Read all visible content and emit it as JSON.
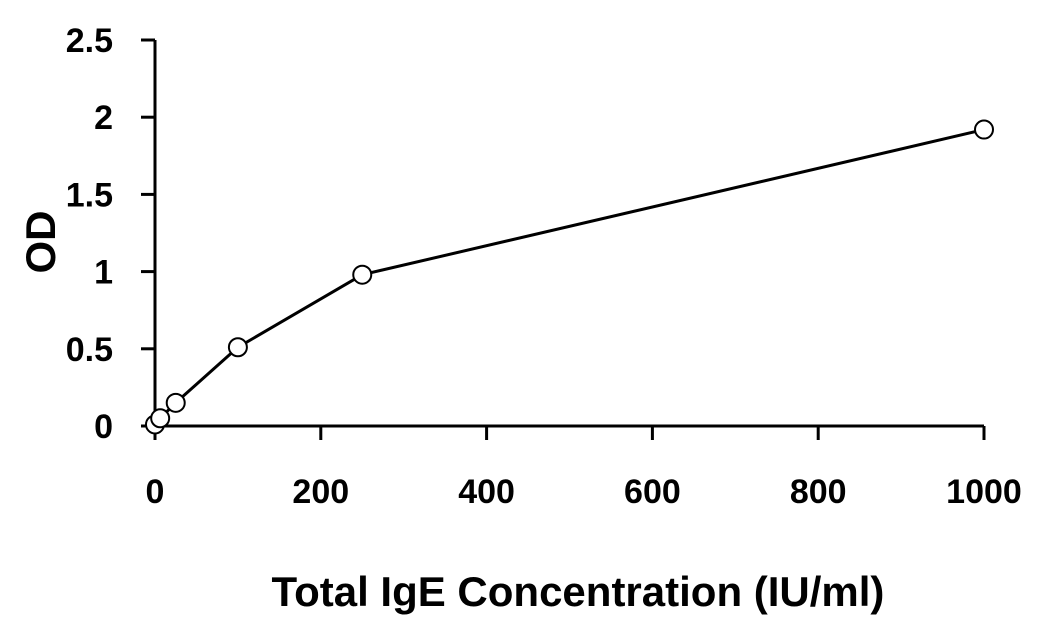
{
  "chart_data": {
    "type": "line",
    "xlabel": "Total IgE Concentration (IU/ml)",
    "ylabel": "OD",
    "xlim": [
      0,
      1000
    ],
    "ylim": [
      0,
      2.5
    ],
    "x_ticks": [
      0,
      200,
      400,
      600,
      800,
      1000
    ],
    "y_ticks": [
      0,
      0.5,
      1,
      1.5,
      2,
      2.5
    ],
    "x_tick_labels": [
      "0",
      "200",
      "400",
      "600",
      "800",
      "1000"
    ],
    "y_tick_labels": [
      "0",
      "0.5",
      "1",
      "1.5",
      "2",
      "2.5"
    ],
    "grid": false,
    "legend": "none",
    "series": [
      {
        "x": [
          0,
          6.25,
          25,
          100,
          250,
          1000
        ],
        "y": [
          0.01,
          0.05,
          0.15,
          0.51,
          0.98,
          1.92
        ],
        "color": "#000000",
        "marker": "open-circle"
      }
    ]
  }
}
